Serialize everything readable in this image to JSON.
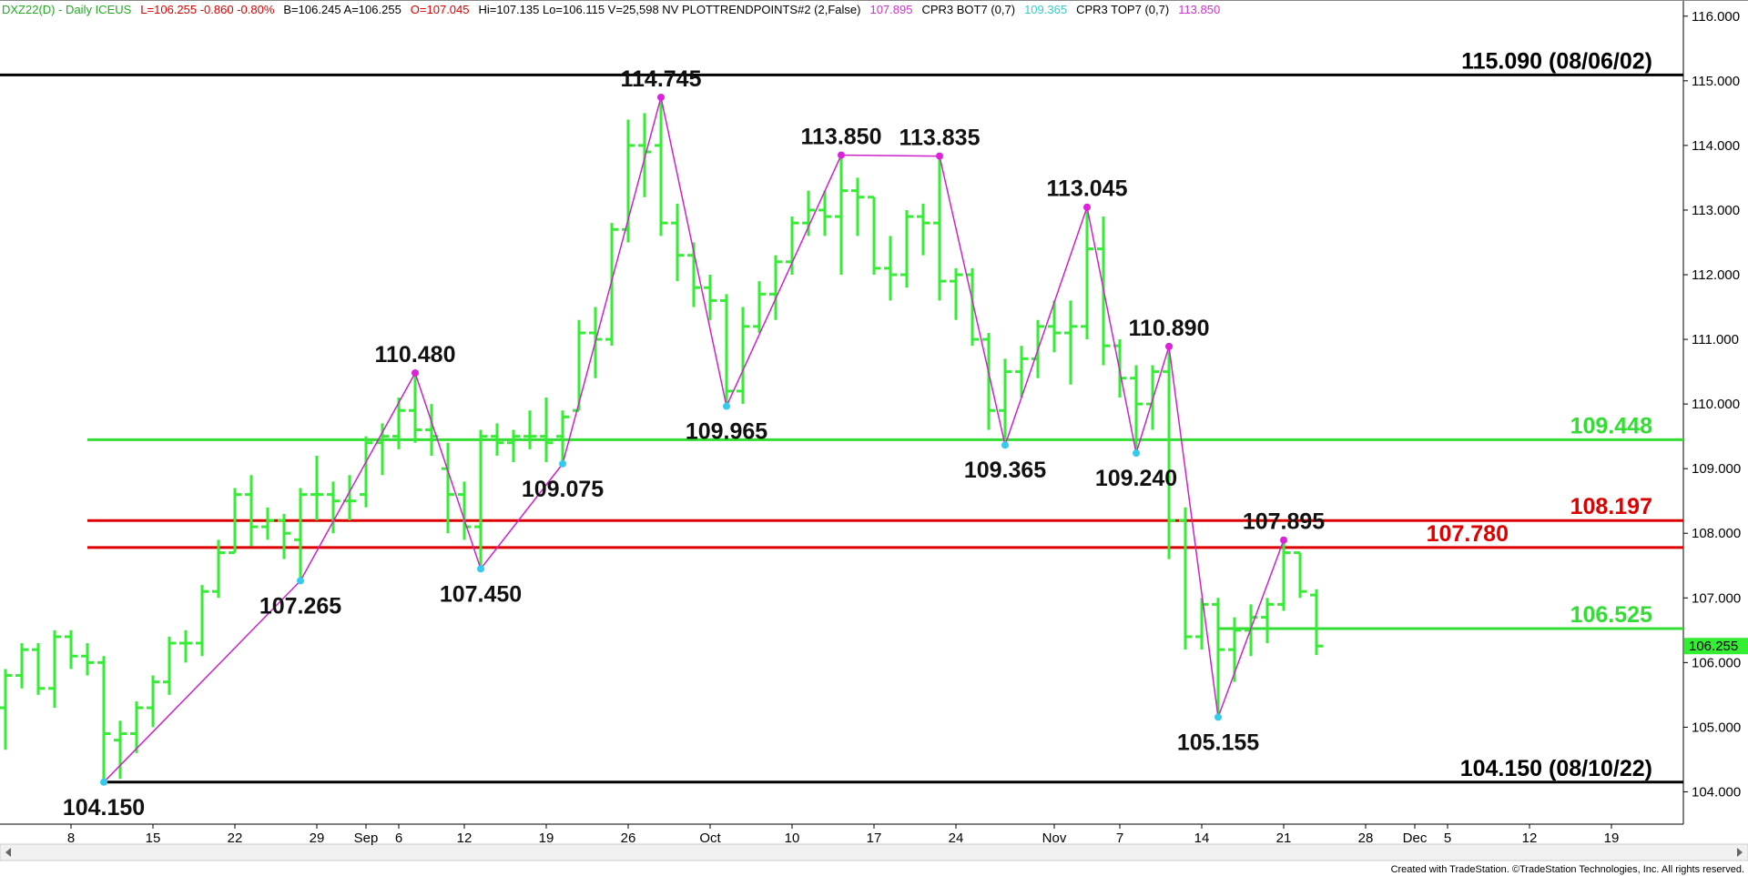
{
  "chart_data": {
    "type": "ohlc",
    "header": [
      {
        "text": "DXZ22(D) - Daily  ICEUS",
        "color": "#22aa22"
      },
      {
        "text": "L=106.255  -0.860  -0.80%",
        "color": "#dd0000"
      },
      {
        "text": "B=106.245  A=106.255",
        "color": "#000000"
      },
      {
        "text": "O=107.045",
        "color": "#dd0000"
      },
      {
        "text": "Hi=107.135  Lo=106.115  V=25,598  NV  PLOTTRENDPOINTS#2 (2,False)",
        "color": "#000000"
      },
      {
        "text": "107.895",
        "color": "#cc33cc"
      },
      {
        "text": "CPR3 BOT7 (0,7)",
        "color": "#000000"
      },
      {
        "text": "109.365",
        "color": "#33cccc"
      },
      {
        "text": "CPR3 TOP7 (0,7)",
        "color": "#000000"
      },
      {
        "text": "113.850",
        "color": "#cc33cc"
      }
    ],
    "footer": "Created with TradeStation. ©TradeStation Technologies, Inc. All rights reserved.",
    "categories": [
      null,
      null,
      null,
      null,
      "8",
      null,
      null,
      null,
      null,
      "15",
      null,
      null,
      null,
      null,
      "22",
      null,
      null,
      null,
      null,
      "29",
      null,
      null,
      "Sep",
      null,
      "6",
      null,
      null,
      null,
      "12",
      null,
      null,
      null,
      null,
      "19",
      null,
      null,
      null,
      null,
      "26",
      null,
      null,
      null,
      null,
      "Oct",
      null,
      null,
      null,
      null,
      "10",
      null,
      null,
      null,
      null,
      "17",
      null,
      null,
      null,
      null,
      "24",
      null,
      null,
      null,
      null,
      null,
      "Nov",
      null,
      null,
      null,
      "7",
      null,
      null,
      null,
      null,
      "14",
      null,
      null,
      null,
      null,
      "21",
      null,
      null,
      null,
      null,
      "28",
      null,
      null,
      "Dec",
      null,
      "5",
      null,
      null,
      null,
      null,
      "12",
      null,
      null,
      null,
      null,
      "19",
      null,
      null,
      null,
      null
    ],
    "bars": {
      "open": [
        105.3,
        105.8,
        106.2,
        105.6,
        106.4,
        106.1,
        106.0,
        104.8,
        104.9,
        105.3,
        105.7,
        106.3,
        106.3,
        107.1,
        107.7,
        108.6,
        108.1,
        108.2,
        107.9,
        108.6,
        108.6,
        108.5,
        108.6,
        109.4,
        109.5,
        109.9,
        109.6,
        109.0,
        108.6,
        108.1,
        109.5,
        109.4,
        109.5,
        109.5,
        109.5,
        109.9,
        111.1,
        111.0,
        112.7,
        114.0,
        114.0,
        112.8,
        112.3,
        111.8,
        111.6,
        110.2,
        111.2,
        111.7,
        112.2,
        112.8,
        113.0,
        112.9,
        113.3,
        113.2,
        112.1,
        112.0,
        112.9,
        112.8,
        111.9,
        112.0,
        111.0,
        109.9,
        110.5,
        110.7,
        111.2,
        111.1,
        111.2,
        112.4,
        110.9,
        110.4,
        110.0,
        110.5,
        108.2,
        106.4,
        106.9,
        106.2,
        106.5,
        106.7,
        106.9,
        107.7,
        107.045,
        null,
        null,
        null,
        null,
        null,
        null,
        null,
        null,
        null,
        null,
        null,
        null,
        null,
        null,
        null,
        null,
        null,
        null,
        null,
        null,
        null,
        null
      ],
      "high": [
        105.9,
        106.3,
        106.3,
        106.5,
        106.5,
        106.3,
        106.1,
        105.1,
        105.4,
        105.8,
        106.4,
        106.5,
        107.2,
        107.9,
        108.7,
        108.9,
        108.4,
        108.3,
        108.7,
        109.2,
        108.8,
        108.9,
        109.5,
        109.7,
        110.1,
        110.48,
        110.0,
        109.4,
        108.8,
        109.6,
        109.7,
        109.6,
        109.9,
        110.1,
        109.9,
        111.3,
        111.5,
        112.8,
        114.4,
        114.5,
        114.745,
        113.1,
        112.5,
        112.0,
        111.7,
        111.5,
        111.9,
        112.3,
        112.9,
        113.3,
        113.3,
        113.85,
        113.5,
        113.2,
        112.6,
        113.0,
        113.1,
        113.835,
        112.1,
        112.1,
        111.1,
        110.7,
        110.9,
        111.3,
        111.6,
        111.6,
        113.045,
        112.9,
        111.0,
        110.6,
        110.6,
        110.89,
        108.4,
        107.0,
        107.0,
        106.7,
        106.9,
        107.0,
        107.895,
        107.7,
        107.135,
        null,
        null,
        null,
        null,
        null,
        null,
        null,
        null,
        null,
        null,
        null,
        null,
        null,
        null,
        null,
        null,
        null,
        null,
        null,
        null,
        null,
        null
      ],
      "low": [
        104.65,
        105.6,
        105.5,
        105.3,
        105.9,
        105.8,
        104.15,
        104.2,
        104.6,
        105.0,
        105.5,
        106.0,
        106.1,
        107.0,
        107.7,
        107.8,
        107.9,
        107.6,
        107.265,
        108.2,
        108.0,
        108.2,
        108.4,
        108.9,
        109.3,
        109.4,
        109.2,
        108.0,
        107.9,
        107.45,
        109.2,
        109.1,
        109.3,
        109.1,
        109.075,
        109.9,
        110.4,
        110.9,
        112.5,
        113.2,
        112.6,
        111.9,
        111.5,
        111.3,
        109.965,
        110.0,
        111.1,
        111.3,
        112.0,
        112.6,
        112.6,
        112.0,
        112.6,
        112.0,
        111.6,
        111.8,
        112.3,
        111.6,
        111.3,
        110.9,
        109.6,
        109.365,
        110.1,
        110.4,
        110.8,
        110.3,
        111.0,
        110.6,
        110.1,
        109.24,
        109.6,
        107.6,
        106.2,
        106.2,
        105.155,
        105.7,
        106.1,
        106.3,
        106.8,
        107.0,
        106.115,
        null,
        null,
        null,
        null,
        null,
        null,
        null,
        null,
        null,
        null,
        null,
        null,
        null,
        null,
        null,
        null,
        null,
        null,
        null,
        null,
        null,
        null
      ],
      "close": [
        105.8,
        106.2,
        105.6,
        106.4,
        106.1,
        106.0,
        104.9,
        104.9,
        105.3,
        105.7,
        106.3,
        106.3,
        107.1,
        107.7,
        108.6,
        108.1,
        108.2,
        108.0,
        108.6,
        108.6,
        108.5,
        108.5,
        109.4,
        109.5,
        109.9,
        109.6,
        109.5,
        108.6,
        108.1,
        109.5,
        109.4,
        109.5,
        109.5,
        109.4,
        109.8,
        111.1,
        111.0,
        112.7,
        114.0,
        113.9,
        112.8,
        112.3,
        111.8,
        111.6,
        110.2,
        111.2,
        111.7,
        112.2,
        112.8,
        113.0,
        112.9,
        113.3,
        113.2,
        112.1,
        112.0,
        112.9,
        112.8,
        111.9,
        112.0,
        111.0,
        109.9,
        110.5,
        110.7,
        111.2,
        111.1,
        111.2,
        112.4,
        110.9,
        110.4,
        110.0,
        110.5,
        108.2,
        106.4,
        106.9,
        106.2,
        106.5,
        106.7,
        106.9,
        107.7,
        107.1,
        106.255,
        null,
        null,
        null,
        null,
        null,
        null,
        null,
        null,
        null,
        null,
        null,
        null,
        null,
        null,
        null,
        null,
        null,
        null,
        null,
        null,
        null,
        null
      ]
    },
    "color": "#33ee33",
    "zigzag_color": "#cc22cc",
    "ylim": [
      103.5,
      116.25
    ],
    "yticks": [
      {
        "value": 104,
        "label": "104.000"
      },
      {
        "value": 105,
        "label": "105.000"
      },
      {
        "value": 106,
        "label": "106.000"
      },
      {
        "value": 107,
        "label": "107.000"
      },
      {
        "value": 108,
        "label": "108.000"
      },
      {
        "value": 109,
        "label": "109.000"
      },
      {
        "value": 110,
        "label": "110.000"
      },
      {
        "value": 111,
        "label": "111.000"
      },
      {
        "value": 112,
        "label": "112.000"
      },
      {
        "value": 113,
        "label": "113.000"
      },
      {
        "value": 114,
        "label": "114.000"
      },
      {
        "value": 115,
        "label": "115.000"
      },
      {
        "value": 116,
        "label": "116.000"
      }
    ],
    "levels": [
      {
        "value": 115.09,
        "label": "115.090 (08/06/02)",
        "color": "#000000",
        "from": 0
      },
      {
        "value": 109.448,
        "label": "109.448",
        "color": "#33dd33",
        "from": 5
      },
      {
        "value": 108.197,
        "label": "108.197",
        "color": "#dd0000",
        "from": 5
      },
      {
        "value": 107.78,
        "label": "107.780",
        "color": "#dd0000",
        "from": 5
      },
      {
        "value": 106.525,
        "label": "106.525",
        "color": "#33dd33",
        "from": 74
      },
      {
        "value": 104.15,
        "label": "104.150 (08/10/22)",
        "color": "#000000",
        "from": 6
      }
    ],
    "annotations": [
      {
        "value": 104.15,
        "label": "104.150",
        "at": 6
      },
      {
        "value": 107.265,
        "label": "107.265",
        "at": 18
      },
      {
        "value": 110.48,
        "label": "110.480",
        "at": 25
      },
      {
        "value": 107.45,
        "label": "107.450",
        "at": 29
      },
      {
        "value": 109.075,
        "label": "109.075",
        "at": 34
      },
      {
        "value": 114.745,
        "label": "114.745",
        "at": 40
      },
      {
        "value": 109.965,
        "label": "109.965",
        "at": 44
      },
      {
        "value": 113.85,
        "label": "113.850",
        "at": 51
      },
      {
        "value": 113.835,
        "label": "113.835",
        "at": 57
      },
      {
        "value": 109.365,
        "label": "109.365",
        "at": 61
      },
      {
        "value": 113.045,
        "label": "113.045",
        "at": 66
      },
      {
        "value": 109.24,
        "label": "109.240",
        "at": 69
      },
      {
        "value": 110.89,
        "label": "110.890",
        "at": 71
      },
      {
        "value": 105.155,
        "label": "105.155",
        "at": 74
      },
      {
        "value": 107.895,
        "label": "107.895",
        "at": 78
      }
    ],
    "last_price": 106.255
  }
}
